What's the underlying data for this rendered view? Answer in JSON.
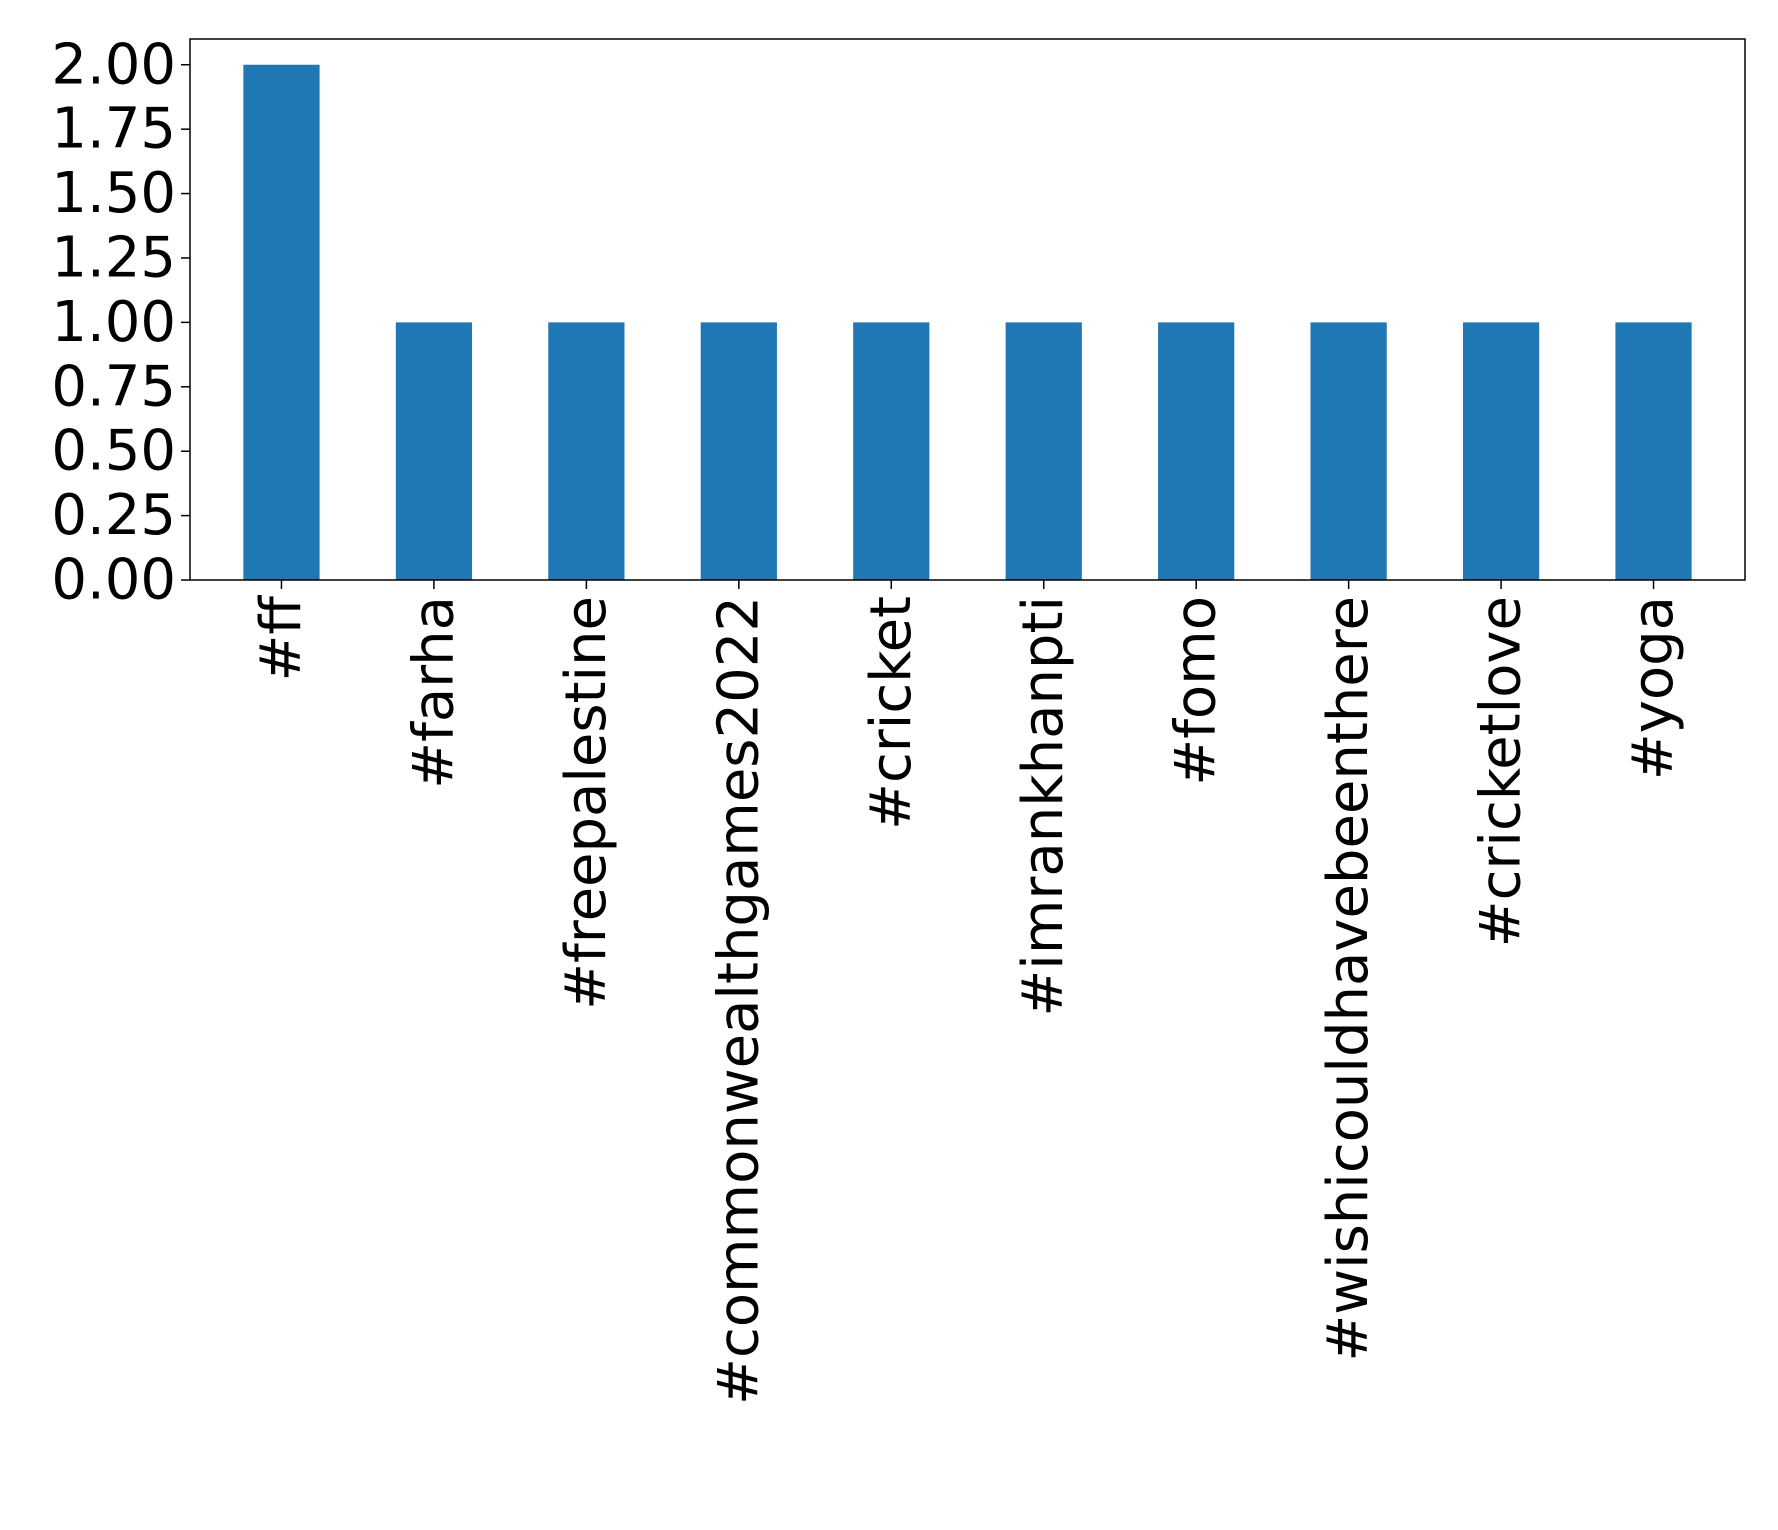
{
  "chart_data": {
    "type": "bar",
    "categories": [
      "#ff",
      "#farha",
      "#freepalestine",
      "#commonwealthgames2022",
      "#cricket",
      "#imrankhanpti",
      "#fomo",
      "#wishicouldhavebeenthere",
      "#cricketlove",
      "#yoga"
    ],
    "values": [
      2,
      1,
      1,
      1,
      1,
      1,
      1,
      1,
      1,
      1
    ],
    "title": "",
    "xlabel": "",
    "ylabel": "",
    "ylim": [
      0,
      2.1
    ],
    "yticks": [
      "0.00",
      "0.25",
      "0.50",
      "0.75",
      "1.00",
      "1.25",
      "1.50",
      "1.75",
      "2.00"
    ],
    "grid": false,
    "legend": "none",
    "bar_color": "#1f77b4"
  }
}
